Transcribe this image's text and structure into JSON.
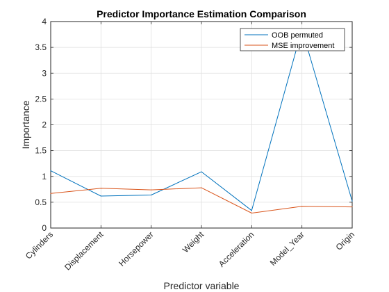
{
  "chart_data": {
    "type": "line",
    "title": "Predictor Importance Estimation Comparison",
    "xlabel": "Predictor variable",
    "ylabel": "Importance",
    "categories": [
      "Cylinders",
      "Displacement",
      "Horsepower",
      "Weight",
      "Acceleration",
      "Model_Year",
      "Origin"
    ],
    "ylim": [
      0,
      4
    ],
    "yticks": [
      0,
      0.5,
      1,
      1.5,
      2,
      2.5,
      3,
      3.5,
      4
    ],
    "ytick_labels": [
      "0",
      "0.5",
      "1",
      "1.5",
      "2",
      "2.5",
      "3",
      "3.5",
      "4"
    ],
    "grid": true,
    "legend_position": "top-right",
    "series": [
      {
        "name": "OOB permuted",
        "color": "#0072BD",
        "values": [
          1.11,
          0.62,
          0.64,
          1.09,
          0.34,
          3.85,
          0.52
        ]
      },
      {
        "name": "MSE improvement",
        "color": "#D95319",
        "values": [
          0.67,
          0.77,
          0.74,
          0.78,
          0.29,
          0.42,
          0.41
        ]
      }
    ]
  }
}
